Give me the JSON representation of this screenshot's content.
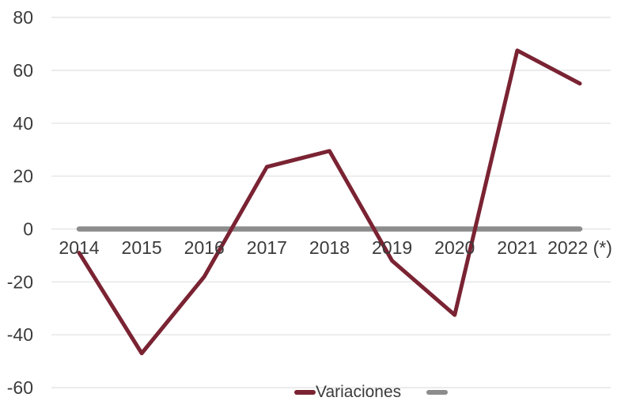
{
  "chart_data": {
    "type": "line",
    "title": "",
    "xlabel": "",
    "ylabel": "",
    "categories": [
      "2014",
      "2015",
      "2016",
      "2017",
      "2018",
      "2019",
      "2020",
      "2021",
      "2022 (*)"
    ],
    "series": [
      {
        "name": "Variaciones",
        "color": "#7a2333",
        "stroke_width": 5,
        "values": [
          -9,
          -47,
          -18,
          23.5,
          29.5,
          -12,
          -32.5,
          67.5,
          55
        ]
      },
      {
        "name": "",
        "color": "#8c8c8c",
        "stroke_width": 6.5,
        "values": [
          0,
          0,
          0,
          0,
          0,
          0,
          0,
          0,
          0
        ]
      }
    ],
    "yticks": [
      80,
      60,
      40,
      20,
      0,
      -20,
      -40,
      -60
    ],
    "ylim": [
      -60,
      80
    ],
    "grid": true,
    "legend_position": "bottom",
    "colors": {
      "background": "#ffffff",
      "gridline": "#e2e2e2",
      "tick_text": "#3b3b3b",
      "series_main": "#7a2333",
      "series_zero": "#8c8c8c"
    }
  }
}
